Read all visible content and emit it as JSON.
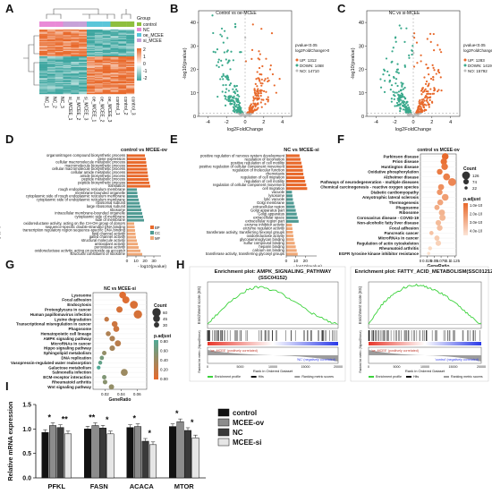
{
  "figure": {
    "panel_letters": [
      "A",
      "B",
      "C",
      "D",
      "E",
      "F",
      "G",
      "H",
      "I"
    ]
  },
  "chart_data": [
    {
      "id": "A",
      "type": "heatmap",
      "legend_title": "Group",
      "groups": [
        "control",
        "NC",
        "oe_MCEE",
        "si_MCEE"
      ],
      "group_colors": [
        "#8fbf3f",
        "#e98bd7",
        "#5bc6d9",
        "#c7a2d8"
      ],
      "color_scale": {
        "ticks": [
          2,
          1,
          0,
          -1,
          -2
        ],
        "colors": [
          "#e8692b",
          "#ffffff",
          "#3ea6a0"
        ]
      },
      "samples": [
        "NC_1",
        "NC_2",
        "NC_3",
        "si_MCEE_1",
        "si_MCEE_2",
        "si_MCEE_3",
        "oe_MCEE_1",
        "oe_MCEE_2",
        "oe_MCEE_3",
        "control_1",
        "control_2",
        "control_3"
      ]
    },
    {
      "id": "B",
      "type": "scatter",
      "title": "Control vs oe-MCEE",
      "xlabel": "log2FoldChange",
      "ylabel": "-log10(pvalue)",
      "x_ticks": [
        -4,
        -2,
        0,
        2,
        4
      ],
      "y_ticks": [
        0,
        10,
        20,
        30,
        40
      ],
      "xlim": [
        -5,
        5
      ],
      "ylim": [
        0,
        45
      ],
      "thresholds_text": [
        "pvalue<0.05",
        "log2FoldChange>0"
      ],
      "legend": [
        "UP: 1312",
        "DOWN: 1468",
        "NO: 14710"
      ]
    },
    {
      "id": "C",
      "type": "scatter",
      "title": "NC vs si-MCEE",
      "xlabel": "log2FoldChange",
      "ylabel": "-log10(pvalue)",
      "x_ticks": [
        -4,
        -2,
        0,
        2,
        4
      ],
      "y_ticks": [
        0,
        10,
        20,
        30,
        40
      ],
      "xlim": [
        -5,
        5
      ],
      "ylim": [
        0,
        45
      ],
      "thresholds_text": [
        "pvalue<0.05",
        "log2FoldChange>0"
      ],
      "legend": [
        "UP: 1283",
        "DOWN: 1419",
        "NO: 15792"
      ]
    },
    {
      "id": "D",
      "type": "bar",
      "title": "control vs MCEE-ov",
      "xlabel": "- log10(pvalue)",
      "x_ticks": [
        0,
        10,
        20,
        30
      ],
      "xlim": [
        0,
        38
      ],
      "legend": [
        "BP",
        "CC",
        "MF"
      ],
      "legend_colors": [
        "#e8692b",
        "#4f9a93",
        "#f0a877"
      ],
      "categories": [
        "organonitrogen compound biosynthetic process",
        "gene expression",
        "cellular macromolecule metabolic process",
        "macromolecule biosynthetic process",
        "cellular macromolecule biosynthetic process",
        "cellular amide metabolic process",
        "amide biosynthetic process",
        "peptide metabolic process",
        "peptide biosynthetic process",
        "translation",
        "rough endoplasmic reticulum membrane",
        "membrane-bounded organelle",
        "cytoplasmic side of rough endoplasmic reticulum membrane",
        "cytoplasmic side of endoplasmic reticulum membrane",
        "ribosomal subunit",
        "large ribosomal subunit",
        "ribosome",
        "intracellular membrane-bounded organelle",
        "cytoplasmic side of membrane",
        "side of membrane",
        "oxidoreductase activity, acting on the CH-OH group of donors",
        "sequence-specific double-stranded DNA binding",
        "transcription regulatory region sequence-specific DNA binding",
        "lipid channel activity",
        "gated channel activity",
        "structural molecule activity",
        "antioxidant activity",
        "peroxidase activity",
        "oxidoreductase activity, acting on peroxide as acceptor",
        "structural constituent of ribosome"
      ],
      "values": [
        20,
        21,
        21.5,
        22,
        22.5,
        23,
        23.5,
        24,
        25,
        26,
        11,
        11.5,
        12,
        13,
        14,
        15,
        16,
        17,
        18,
        19,
        8,
        8.5,
        9,
        9.5,
        10,
        11,
        12,
        13,
        15,
        17
      ],
      "group_of": [
        "BP",
        "BP",
        "BP",
        "BP",
        "BP",
        "BP",
        "BP",
        "BP",
        "BP",
        "BP",
        "CC",
        "CC",
        "CC",
        "CC",
        "CC",
        "CC",
        "CC",
        "CC",
        "CC",
        "CC",
        "MF",
        "MF",
        "MF",
        "MF",
        "MF",
        "MF",
        "MF",
        "MF",
        "MF",
        "MF"
      ]
    },
    {
      "id": "E",
      "type": "bar",
      "title": "NC vs MCEE-si",
      "xlabel": "- log10(pvalue)",
      "x_ticks": [
        0,
        10,
        20
      ],
      "xlim": [
        0,
        32
      ],
      "legend": [
        "BP",
        "CC",
        "MF"
      ],
      "legend_colors": [
        "#e8692b",
        "#4f9a93",
        "#f0a877"
      ],
      "categories": [
        "positive regulation of nervous system development",
        "regulation of locomotion",
        "positive regulation of cell motility",
        "positive regulation of cellular component movement",
        "regulation of molecular function",
        "chemotaxis",
        "regulation of cell migration",
        "regulation of cell motility",
        "regulation of cellular component movement",
        "cell migration",
        "vacuole",
        "lysosome",
        "lytic vacuole",
        "Golgi membrane",
        "extracellular region",
        "Golgi apparatus part",
        "Golgi apparatus",
        "extracellular space",
        "extracellular region part",
        "enzyme inhibitor activity",
        "enzyme regulator activity",
        "transferase activity, transferring hexosyl groups",
        "oxidoreductase activity",
        "glycosaminoglycan binding",
        "sulfur compound binding",
        "heparin binding",
        "calcium ion binding",
        "transferase activity, transferring glycosyl groups"
      ],
      "values": [
        14,
        15,
        16,
        17,
        17.5,
        18,
        19,
        20,
        21,
        22,
        6,
        6.5,
        7,
        8,
        9,
        10,
        11,
        12,
        13,
        6,
        6.5,
        7,
        7.5,
        8,
        9,
        10,
        11,
        12
      ],
      "group_of": [
        "BP",
        "BP",
        "BP",
        "BP",
        "BP",
        "BP",
        "BP",
        "BP",
        "BP",
        "BP",
        "CC",
        "CC",
        "CC",
        "CC",
        "CC",
        "CC",
        "CC",
        "CC",
        "CC",
        "MF",
        "MF",
        "MF",
        "MF",
        "MF",
        "MF",
        "MF",
        "MF",
        "MF"
      ]
    },
    {
      "id": "F",
      "type": "scatter",
      "title": "control vs MCEE-ov",
      "xlabel": "GeneRatio",
      "x_ticks": [
        0,
        0.025,
        0.05,
        0.075,
        0.1,
        0.125
      ],
      "x_tick_labels": [
        "0",
        "0.025",
        "0.05",
        "0.075",
        "0.1",
        "0.125"
      ],
      "xlim": [
        0,
        0.13
      ],
      "size_legend_title": "Count",
      "size_legend": [
        126,
        74,
        22
      ],
      "color_legend_title": "p.adjust",
      "color_ticks": [
        "1.0e-10",
        "2.0e-10",
        "3.0e-10",
        "4.0e-10"
      ],
      "categories": [
        "Parkinson disease",
        "Prion disease",
        "Huntington disease",
        "Oxidative phosphorylation",
        "Alzheimer disease",
        "Pathways of neurodegeneration - multiple diseases",
        "Chemical carcinogenesis - reactive oxygen species",
        "Diabetic cardiomyopathy",
        "Amyotrophic lateral sclerosis",
        "Thermogenesis",
        "Phagosome",
        "Ribosome",
        "Coronavirus disease - COVID-19",
        "Non-alcoholic fatty liver disease",
        "Focal adhesion",
        "Pancreatic cancer",
        "MicroRNAs in cancer",
        "Regulation of actin cytoskeleton",
        "Rheumatoid arthritis",
        "EGFR tyrosine kinase inhibitor resistance"
      ],
      "x": [
        0.09,
        0.085,
        0.088,
        0.07,
        0.095,
        0.115,
        0.075,
        0.07,
        0.09,
        0.072,
        0.06,
        0.078,
        0.08,
        0.065,
        0.07,
        0.04,
        0.06,
        0.065,
        0.035,
        0.03
      ],
      "count": [
        100,
        95,
        98,
        80,
        105,
        126,
        85,
        80,
        100,
        82,
        68,
        88,
        90,
        74,
        78,
        45,
        68,
        74,
        40,
        22
      ],
      "p_adjust": [
        1e-10,
        1.2e-10,
        1.4e-10,
        1.5e-10,
        1.6e-10,
        1.8e-10,
        2e-10,
        2.2e-10,
        2.4e-10,
        2.6e-10,
        2.8e-10,
        3e-10,
        3.1e-10,
        3.2e-10,
        3.3e-10,
        3.4e-10,
        3.6e-10,
        3.8e-10,
        4e-10,
        4.2e-10
      ]
    },
    {
      "id": "G",
      "type": "scatter",
      "title": "NC vs MCEE-si",
      "xlabel": "GeneRatio",
      "x_ticks": [
        0.02,
        0.04,
        0.06
      ],
      "x_tick_labels": [
        "0.02",
        "0.04",
        "0.06"
      ],
      "xlim": [
        0.005,
        0.072
      ],
      "size_legend_title": "Count",
      "size_legend": [
        60,
        45,
        30
      ],
      "color_legend_title": "p.adjust",
      "color_ticks": [
        "0.80",
        "0.60",
        "0.40",
        "0.20",
        "0.00"
      ],
      "categories": [
        "Lysosome",
        "Focal adhesion",
        "Endocytosis",
        "Proteoglycans in cancer",
        "Human papillomavirus infection",
        "Lysine degradation",
        "Transcriptional misregulation in cancer",
        "Phagosome",
        "Hematopoietic cell lineage",
        "AMPK signaling pathway",
        "MicroRNAs in cancer",
        "Hippo signaling pathway",
        "Sphingolipid metabolism",
        "DNA replication",
        "Vasopressin-regulated water reabsorption",
        "Galactose metabolism",
        "Salmonella infection",
        "ECM-receptor interaction",
        "Rheumatoid arthritis",
        "Wnt signaling pathway"
      ],
      "x": [
        0.042,
        0.046,
        0.056,
        0.038,
        0.061,
        0.022,
        0.032,
        0.034,
        0.024,
        0.029,
        0.036,
        0.029,
        0.019,
        0.016,
        0.014,
        0.012,
        0.044,
        0.019,
        0.02,
        0.028
      ],
      "count": [
        45,
        48,
        55,
        40,
        60,
        25,
        35,
        37,
        27,
        32,
        38,
        32,
        22,
        20,
        18,
        16,
        46,
        22,
        23,
        30
      ],
      "p_adjust": [
        0.05,
        0.06,
        0.08,
        0.1,
        0.1,
        0.2,
        0.15,
        0.15,
        0.3,
        0.3,
        0.25,
        0.35,
        0.45,
        0.6,
        0.7,
        0.8,
        0.4,
        0.55,
        0.5,
        0.45
      ]
    },
    {
      "id": "H1",
      "type": "line",
      "title": "Enrichment plot: AMPK_SIGNALING_PATHWAY",
      "subtitle": "(SSC04152)",
      "ylabel": "Enrichment score (ES)",
      "lower_ylabel": "Ranked list metric (Signal2Noise)",
      "xlabel": "Rank in Ordered Dataset",
      "pos_label": "'oe_MCEE' (positively correlated)",
      "neg_label": "'NC' (negatively correlated)",
      "legend": [
        "Enrichment profile",
        "Hits",
        "Ranking metric scores"
      ],
      "x": [
        0,
        1000,
        2000,
        3000,
        4000,
        5000,
        6000,
        7000,
        8000,
        9000,
        10000,
        11000,
        12000,
        13000,
        14000,
        15000,
        16000,
        17000,
        18000,
        19000,
        20000
      ],
      "y": [
        0,
        0.08,
        0.16,
        0.24,
        0.3,
        0.36,
        0.4,
        0.43,
        0.44,
        0.42,
        0.4,
        0.38,
        0.33,
        0.28,
        0.23,
        0.18,
        0.13,
        0.09,
        0.05,
        0.02,
        0
      ]
    },
    {
      "id": "H2",
      "type": "line",
      "title": "Enrichment plot: FATTY_ACID_METABOLISM(SSC01212)",
      "ylabel": "Enrichment score (ES)",
      "lower_ylabel": "Ranked list metric (Signal2Noise)",
      "xlabel": "Rank in Ordered Dataset",
      "pos_label": "'oe_MCEE' (positively correlated)",
      "neg_label": "'control' (negatively correlated)",
      "legend": [
        "Enrichment profile",
        "Hits",
        "Ranking metric scores"
      ],
      "x": [
        0,
        1000,
        2000,
        3000,
        4000,
        5000,
        6000,
        7000,
        8000,
        9000,
        10000,
        11000,
        12000,
        13000,
        14000,
        15000,
        16000,
        17000,
        18000,
        19000,
        20000
      ],
      "y": [
        0,
        0.1,
        0.2,
        0.28,
        0.33,
        0.38,
        0.42,
        0.45,
        0.46,
        0.46,
        0.44,
        0.42,
        0.4,
        0.36,
        0.32,
        0.27,
        0.21,
        0.15,
        0.1,
        0.04,
        0
      ]
    },
    {
      "id": "I",
      "type": "bar",
      "ylabel": "Relative mRNA expression",
      "ylim": [
        0,
        1.5
      ],
      "y_ticks": [
        0,
        0.5,
        1.0,
        1.5
      ],
      "y_tick_labels": [
        "0.0",
        "0.5",
        "1.0",
        "1.5"
      ],
      "categories": [
        "PFKL",
        "FASN",
        "ACACA",
        "MTOR"
      ],
      "series": [
        {
          "name": "control",
          "color": "#111111",
          "values": [
            0.93,
            1.0,
            1.03,
            1.05
          ]
        },
        {
          "name": "MCEE-ov",
          "color": "#8c8c8c",
          "values": [
            1.07,
            1.07,
            1.05,
            1.15
          ]
        },
        {
          "name": "NC",
          "color": "#3a3a3a",
          "values": [
            1.03,
            1.02,
            0.75,
            0.97
          ]
        },
        {
          "name": "MCEE-si",
          "color": "#e6e6e6",
          "values": [
            0.9,
            0.9,
            0.68,
            0.82
          ]
        }
      ],
      "significance": [
        {
          "category": "PFKL",
          "marks": [
            "*",
            "**"
          ]
        },
        {
          "category": "FASN",
          "marks": [
            "**",
            "*"
          ]
        },
        {
          "category": "ACACA",
          "marks": [
            "*",
            "*"
          ]
        },
        {
          "category": "MTOR",
          "marks": [
            "*",
            "*"
          ]
        }
      ]
    }
  ]
}
